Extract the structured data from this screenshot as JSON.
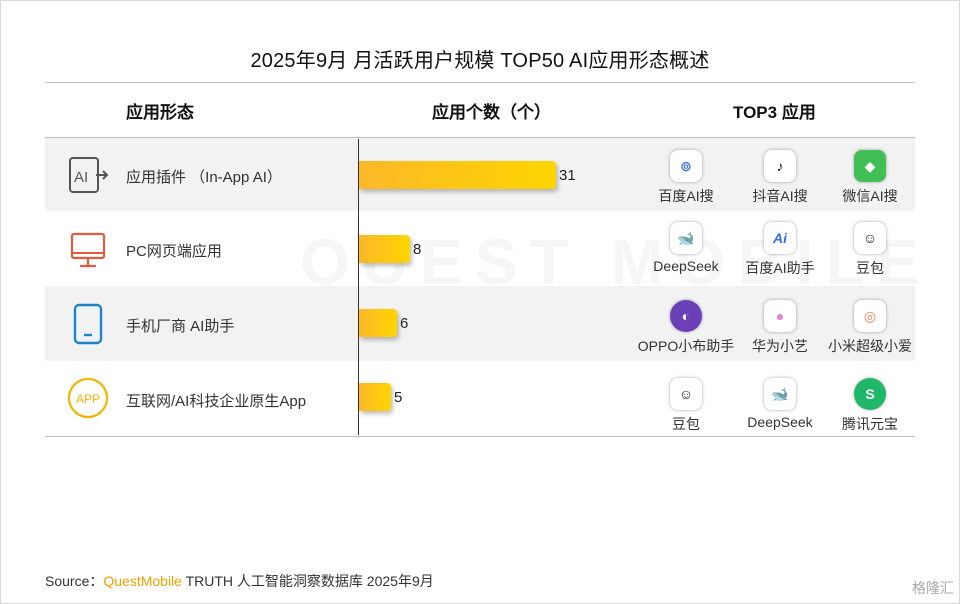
{
  "title": "2025年9月 月活跃用户规模 TOP50 AI应用形态概述",
  "headers": {
    "form": "应用形态",
    "count": "应用个数（个）",
    "top3": "TOP3 应用"
  },
  "chart_data": {
    "type": "bar",
    "orientation": "horizontal",
    "categories": [
      "应用插件 （In-App AI）",
      "PC网页端应用",
      "手机厂商 AI助手",
      "互联网/AI科技企业原生App"
    ],
    "values": [
      31,
      8,
      6,
      5
    ],
    "xlim": [
      0,
      31
    ]
  },
  "rows": [
    {
      "label": "应用插件 （In-App AI）",
      "icon": "ai-plugin-icon",
      "top3": [
        "百度AI搜",
        "抖音AI搜",
        "微信AI搜"
      ]
    },
    {
      "label": "PC网页端应用",
      "icon": "desktop-monitor-icon",
      "top3": [
        "DeepSeek",
        "百度AI助手",
        "豆包"
      ]
    },
    {
      "label": "手机厂商 AI助手",
      "icon": "mobile-phone-icon",
      "top3": [
        "OPPO小布助手",
        "华为小艺",
        "小米超级小爱"
      ]
    },
    {
      "label": "互联网/AI科技企业原生App",
      "icon": "app-badge-icon",
      "top3": [
        "豆包",
        "DeepSeek",
        "腾讯元宝"
      ]
    }
  ],
  "icon_text": {
    "plugin": "AI",
    "app": "APP"
  },
  "watermark": "QUEST MOBILE",
  "source": {
    "prefix": "Source：",
    "brand": "QuestMobile",
    "rest": " TRUTH 人工智能洞察数据库 2025年9月"
  },
  "corner_logo": "格隆汇",
  "colors": {
    "bar_start": "#fbb828",
    "bar_end": "#ffd500",
    "icon_red": "#e35a3d",
    "icon_blue": "#1a86c8",
    "icon_yellow": "#f5b400"
  }
}
